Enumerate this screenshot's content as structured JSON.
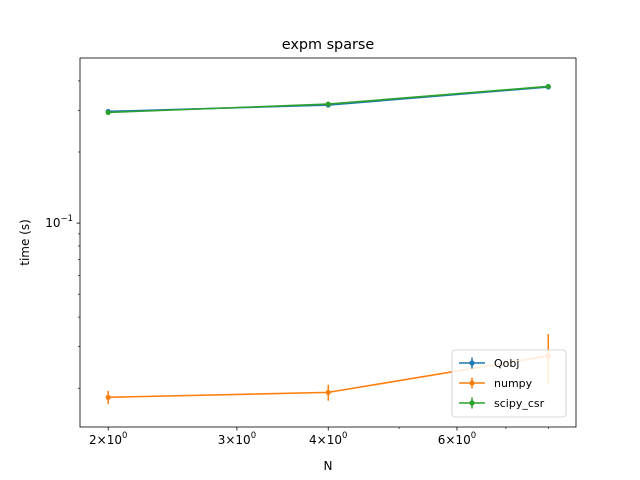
{
  "chart_data": {
    "type": "line",
    "title": "expm sparse",
    "xlabel": "N",
    "ylabel": "time (s)",
    "xscale": "log",
    "yscale": "log",
    "xlim": [
      1.83,
      8.73
    ],
    "ylim": [
      0.0137,
      0.5
    ],
    "x_tick_values": [
      2,
      3,
      4,
      6
    ],
    "x_tick_labels": [
      {
        "base": "2",
        "mult": "×",
        "power_base": "10",
        "exp": "0"
      },
      {
        "base": "3",
        "mult": "×",
        "power_base": "10",
        "exp": "0"
      },
      {
        "base": "4",
        "mult": "×",
        "power_base": "10",
        "exp": "0"
      },
      {
        "base": "6",
        "mult": "×",
        "power_base": "10",
        "exp": "0"
      }
    ],
    "x_minor_ticks": [
      5,
      7,
      8
    ],
    "y_tick_values": [
      0.1
    ],
    "y_tick_labels": [
      {
        "base": "10",
        "exp": "−1"
      }
    ],
    "legend_position": "lower right",
    "x": [
      2,
      4,
      8
    ],
    "series": [
      {
        "name": "Qobj",
        "color": "#1f77b4",
        "values": [
          0.297,
          0.316,
          0.377
        ],
        "errors": [
          0.003,
          0.003,
          0.003
        ]
      },
      {
        "name": "numpy",
        "color": "#ff7f0e",
        "values": [
          0.0183,
          0.0192,
          0.0274
        ],
        "errors": [
          0.0012,
          0.0015,
          0.0065
        ]
      },
      {
        "name": "scipy_csr",
        "color": "#2ca02c",
        "values": [
          0.294,
          0.319,
          0.379
        ],
        "errors": [
          0.003,
          0.003,
          0.003
        ]
      }
    ]
  }
}
